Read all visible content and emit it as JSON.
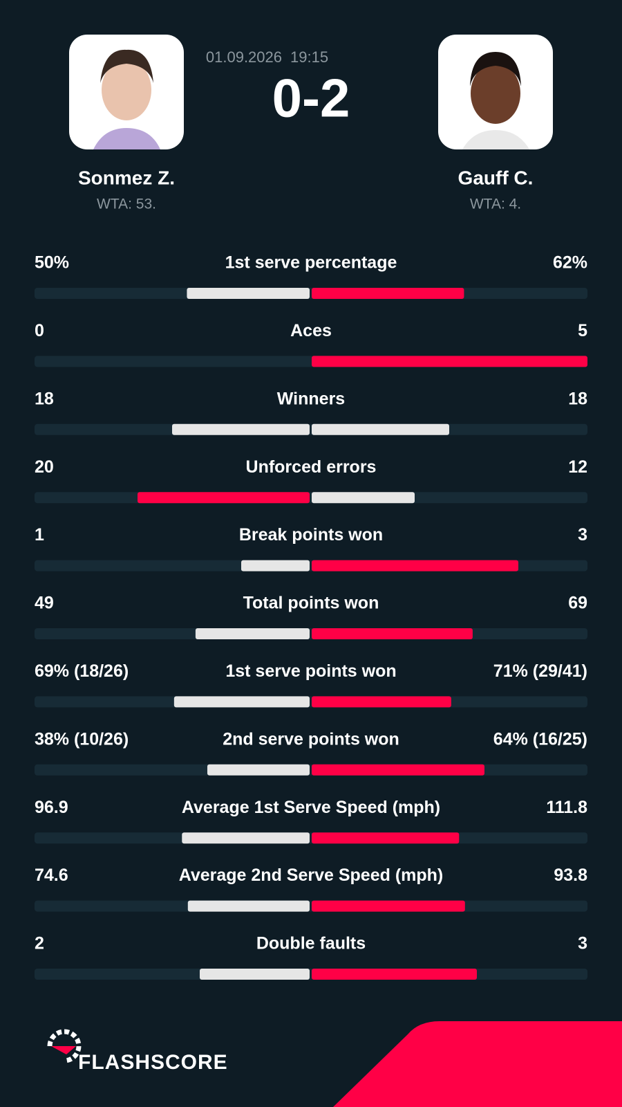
{
  "header": {
    "date": "01.09.2026",
    "time": "19:15",
    "score": "0-2",
    "players": [
      {
        "name": "Sonmez Z.",
        "rank": "WTA: 53."
      },
      {
        "name": "Gauff C.",
        "rank": "WTA: 4."
      }
    ]
  },
  "stats": {
    "highlight_color": "#ff0046",
    "base_color": "#e6e6e6",
    "track_color": "#172b36",
    "rows": [
      {
        "label": "1st serve percentage",
        "values": [
          50,
          62
        ],
        "value_labels": [
          "50%",
          "62%"
        ]
      },
      {
        "label": "Aces",
        "values": [
          0,
          5
        ]
      },
      {
        "label": "Winners",
        "values": [
          18,
          18
        ]
      },
      {
        "label": "Unforced errors",
        "values": [
          20,
          12
        ]
      },
      {
        "label": "Break points won",
        "values": [
          1,
          3
        ]
      },
      {
        "label": "Total points won",
        "values": [
          49,
          69
        ]
      },
      {
        "label": "1st serve points won",
        "values": [
          69,
          71
        ],
        "value_labels": [
          "69% (18/26)",
          "71% (29/41)"
        ]
      },
      {
        "label": "2nd serve points won",
        "values": [
          38,
          64
        ],
        "value_labels": [
          "38% (10/26)",
          "64% (16/25)"
        ]
      },
      {
        "label": "Average 1st Serve Speed (mph)",
        "values": [
          96.9,
          111.8
        ]
      },
      {
        "label": "Average 2nd Serve Speed (mph)",
        "values": [
          74.6,
          93.8
        ]
      },
      {
        "label": "Double faults",
        "values": [
          2,
          3
        ]
      }
    ]
  },
  "footer": {
    "brand": "FLASHSCORE"
  }
}
